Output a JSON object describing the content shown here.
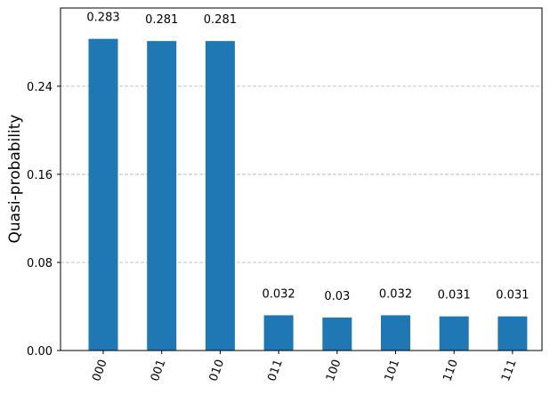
{
  "chart_data": {
    "type": "bar",
    "ylabel": "Quasi-probability",
    "categories": [
      "000",
      "001",
      "010",
      "011",
      "100",
      "101",
      "110",
      "111"
    ],
    "values": [
      0.283,
      0.281,
      0.281,
      0.032,
      0.03,
      0.032,
      0.031,
      0.031
    ],
    "color": "#1f77b4",
    "ylim": [
      0,
      0.311
    ],
    "yticks": [
      {
        "value": 0,
        "label": "0.00"
      },
      0.08,
      0.16,
      0.24
    ],
    "grid": true
  }
}
